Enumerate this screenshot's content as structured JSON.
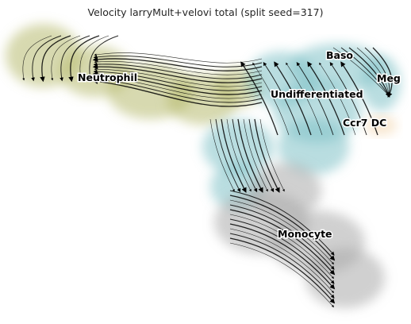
{
  "chart_data": {
    "type": "scatter",
    "title": "Velocity larryMult+velovi total (split seed=317)",
    "xlabel": "",
    "ylabel": "",
    "grid": false,
    "legend": "on data",
    "overlay": "velocity streamlines with arrowheads",
    "clusters": [
      {
        "name": "Neutrophil",
        "color": "#b7b96f"
      },
      {
        "name": "Baso",
        "color": "#80c1c6"
      },
      {
        "name": "Meg",
        "color": "#80c1c6"
      },
      {
        "name": "Undifferentiated",
        "color": "#80c1c6"
      },
      {
        "name": "Ccr7 DC",
        "color": "#f2d3a8"
      },
      {
        "name": "Monocyte",
        "color": "#a9a9a9"
      }
    ]
  }
}
